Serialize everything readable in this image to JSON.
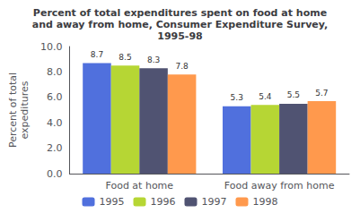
{
  "chart_data": {
    "type": "bar",
    "title": "Percent of total expenditures spent on food at home\nand away from home, Consumer Expenditure Survey,\n1995-98",
    "ylabel": "Percent of total\nexpeditures",
    "categories": [
      "Food at home",
      "Food away from home"
    ],
    "series": [
      {
        "name": "1995",
        "values": [
          8.7,
          5.3
        ]
      },
      {
        "name": "1996",
        "values": [
          8.5,
          5.4
        ]
      },
      {
        "name": "1997",
        "values": [
          8.3,
          5.5
        ]
      },
      {
        "name": "1998",
        "values": [
          7.8,
          5.7
        ]
      }
    ],
    "ylim": [
      0,
      10
    ],
    "yticks": [
      {
        "value": 0,
        "label": "0.0"
      },
      {
        "value": 2,
        "label": "2.0"
      },
      {
        "value": 4,
        "label": "4.0"
      },
      {
        "value": 6,
        "label": "6.0"
      },
      {
        "value": 8,
        "label": "8.0"
      },
      {
        "value": 10,
        "label": "10.0"
      }
    ],
    "grid": false,
    "legend": "bottom",
    "data_labels": true
  }
}
